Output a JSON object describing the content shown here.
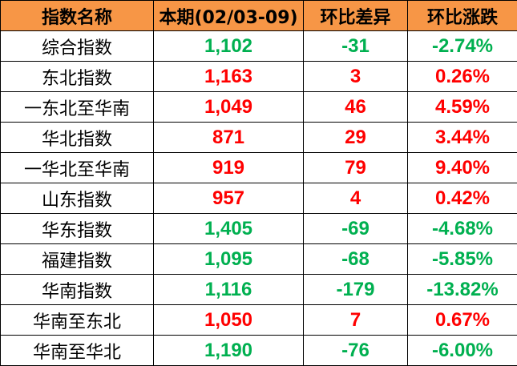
{
  "headers": [
    "指数名称",
    "本期(02/03-09)",
    "环比差异",
    "环比涨跌"
  ],
  "colors": {
    "header_bg": "#F79646",
    "up": "#FF0000",
    "down": "#00B050"
  },
  "rows": [
    {
      "name": "综合指数",
      "current": "1,102",
      "diff": "-31",
      "pct": "-2.74%",
      "trend": "down"
    },
    {
      "name": "东北指数",
      "current": "1,163",
      "diff": "3",
      "pct": "0.26%",
      "trend": "up"
    },
    {
      "name": "一东北至华南",
      "current": "1,049",
      "diff": "46",
      "pct": "4.59%",
      "trend": "up"
    },
    {
      "name": "华北指数",
      "current": "871",
      "diff": "29",
      "pct": "3.44%",
      "trend": "up"
    },
    {
      "name": "一华北至华南",
      "current": "919",
      "diff": "79",
      "pct": "9.40%",
      "trend": "up"
    },
    {
      "name": "山东指数",
      "current": "957",
      "diff": "4",
      "pct": "0.42%",
      "trend": "up"
    },
    {
      "name": "华东指数",
      "current": "1,405",
      "diff": "-69",
      "pct": "-4.68%",
      "trend": "down"
    },
    {
      "name": "福建指数",
      "current": "1,095",
      "diff": "-68",
      "pct": "-5.85%",
      "trend": "down"
    },
    {
      "name": "华南指数",
      "current": "1,116",
      "diff": "-179",
      "pct": "-13.82%",
      "trend": "down"
    },
    {
      "name": "华南至东北",
      "current": "1,050",
      "diff": "7",
      "pct": "0.67%",
      "trend": "up"
    },
    {
      "name": "华南至华北",
      "current": "1,190",
      "diff": "-76",
      "pct": "-6.00%",
      "trend": "down"
    }
  ]
}
